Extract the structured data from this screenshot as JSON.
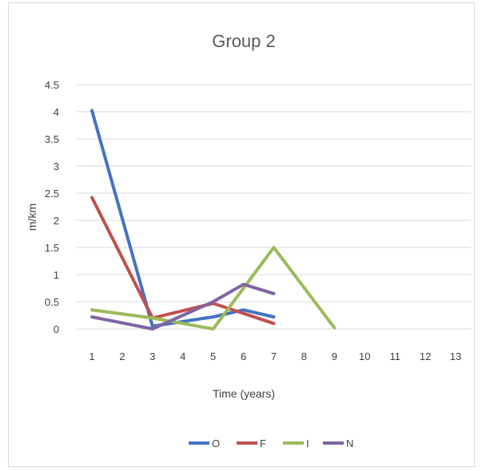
{
  "chart_data": {
    "type": "line",
    "title": "Group 2",
    "xlabel": "Time (years)",
    "ylabel": "m/km",
    "categories": [
      "1",
      "2",
      "3",
      "4",
      "5",
      "6",
      "7",
      "8",
      "9",
      "10",
      "11",
      "12",
      "13"
    ],
    "ylim": [
      0,
      4.5
    ],
    "yticks": [
      "0",
      "0.5",
      "1",
      "1.5",
      "2",
      "2.5",
      "3",
      "3.5",
      "4",
      "4.5"
    ],
    "grid": true,
    "legend": "bottom",
    "series": [
      {
        "name": "O",
        "color": "#4472C4",
        "points": [
          [
            1,
            4.02
          ],
          [
            3,
            0.05
          ],
          [
            5,
            0.22
          ],
          [
            6,
            0.35
          ],
          [
            7,
            0.22
          ]
        ]
      },
      {
        "name": "F",
        "color": "#C0504D",
        "points": [
          [
            1,
            2.42
          ],
          [
            3,
            0.2
          ],
          [
            5,
            0.47
          ],
          [
            7,
            0.1
          ]
        ]
      },
      {
        "name": "I",
        "color": "#9BBB59",
        "points": [
          [
            1,
            0.35
          ],
          [
            3,
            0.2
          ],
          [
            5,
            0.0
          ],
          [
            7,
            1.5
          ],
          [
            9,
            0.02
          ]
        ]
      },
      {
        "name": "N",
        "color": "#8064A2",
        "points": [
          [
            1,
            0.22
          ],
          [
            3,
            0.0
          ],
          [
            5,
            0.5
          ],
          [
            6,
            0.82
          ],
          [
            7,
            0.65
          ]
        ]
      }
    ]
  }
}
